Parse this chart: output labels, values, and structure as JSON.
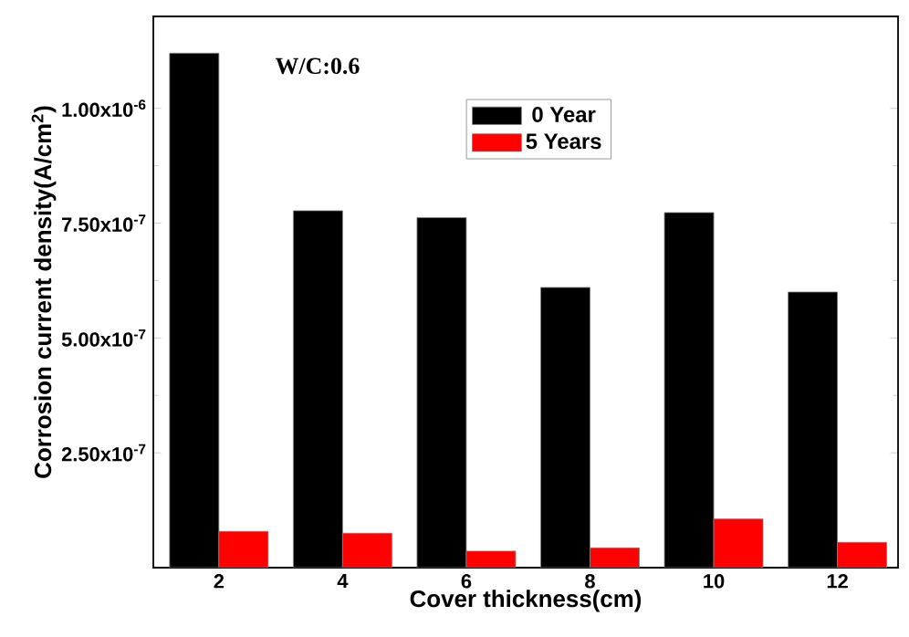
{
  "chart_data": {
    "type": "bar",
    "xlabel": "Cover thickness(cm)",
    "ylabel": "Corrosion current density(A/cm$^{2}$)",
    "annotations": [
      "W/C:0.6"
    ],
    "categories": [
      "2",
      "4",
      "6",
      "8",
      "10",
      "12"
    ],
    "series": [
      {
        "name": "0 Year",
        "color": "#000000",
        "values": [
          1.12e-06,
          7.77e-07,
          7.62e-07,
          6.1e-07,
          7.73e-07,
          6e-07
        ]
      },
      {
        "name": "5 Years",
        "color": "#ff0000",
        "values": [
          7.9e-08,
          7.5e-08,
          3.6e-08,
          4.3e-08,
          1.06e-07,
          5.5e-08
        ]
      }
    ],
    "ylim": [
      0,
      1.2e-06
    ],
    "yticks": [
      {
        "value": 2.5e-07,
        "label": "2.50x10$^{-7}$"
      },
      {
        "value": 5e-07,
        "label": "5.00x10$^{-7}$"
      },
      {
        "value": 7.5e-07,
        "label": "7.50x10$^{-7}$"
      },
      {
        "value": 1e-06,
        "label": "1.00x10$^{-6}$"
      }
    ],
    "legend": "top right"
  }
}
